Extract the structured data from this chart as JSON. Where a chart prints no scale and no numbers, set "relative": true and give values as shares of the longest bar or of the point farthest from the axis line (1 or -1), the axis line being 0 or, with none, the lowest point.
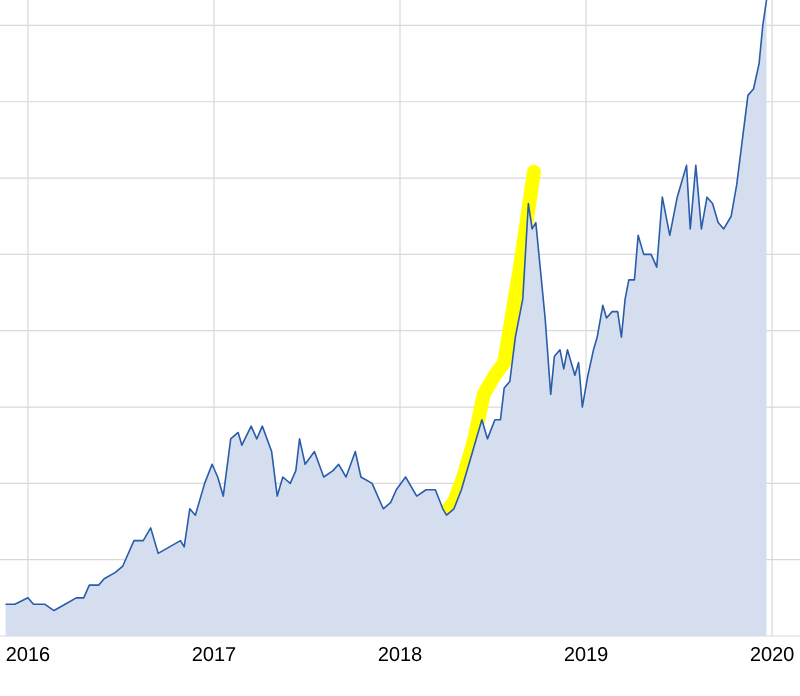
{
  "chart_data": {
    "type": "area",
    "relative": true,
    "grid": true,
    "xlim": [
      2015.85,
      2020.15
    ],
    "xticks": [
      2016,
      2017,
      2018,
      2019,
      2020
    ],
    "series": [
      {
        "color": "#2a5caa",
        "x": [
          2015.88,
          2015.93,
          2016.0,
          2016.03,
          2016.09,
          2016.14,
          2016.2,
          2016.26,
          2016.3,
          2016.33,
          2016.38,
          2016.41,
          2016.47,
          2016.51,
          2016.57,
          2016.62,
          2016.66,
          2016.7,
          2016.76,
          2016.82,
          2016.84,
          2016.87,
          2016.9,
          2016.95,
          2016.99,
          2017.02,
          2017.05,
          2017.09,
          2017.13,
          2017.15,
          2017.2,
          2017.23,
          2017.26,
          2017.31,
          2017.34,
          2017.37,
          2017.41,
          2017.44,
          2017.46,
          2017.49,
          2017.54,
          2017.59,
          2017.64,
          2017.67,
          2017.71,
          2017.76,
          2017.79,
          2017.85,
          2017.91,
          2017.95,
          2017.98,
          2018.03,
          2018.09,
          2018.14,
          2018.19,
          2018.23,
          2018.25,
          2018.29,
          2018.33,
          2018.38,
          2018.42,
          2018.44,
          2018.47,
          2018.51,
          2018.54,
          2018.56,
          2018.59,
          2018.62,
          2018.66,
          2018.69,
          2018.71,
          2018.73,
          2018.76,
          2018.78,
          2018.81,
          2018.83,
          2018.86,
          2018.88,
          2018.9,
          2018.94,
          2018.96,
          2018.98,
          2019.01,
          2019.04,
          2019.06,
          2019.09,
          2019.11,
          2019.14,
          2019.17,
          2019.19,
          2019.21,
          2019.23,
          2019.26,
          2019.28,
          2019.31,
          2019.35,
          2019.38,
          2019.41,
          2019.45,
          2019.49,
          2019.51,
          2019.54,
          2019.56,
          2019.59,
          2019.62,
          2019.65,
          2019.68,
          2019.71,
          2019.74,
          2019.78,
          2019.81,
          2019.84,
          2019.87,
          2019.9,
          2019.93,
          2019.95,
          2019.97
        ],
        "values": [
          0.05,
          0.05,
          0.06,
          0.05,
          0.05,
          0.04,
          0.05,
          0.06,
          0.06,
          0.08,
          0.08,
          0.09,
          0.1,
          0.11,
          0.15,
          0.15,
          0.17,
          0.13,
          0.14,
          0.15,
          0.14,
          0.2,
          0.19,
          0.24,
          0.27,
          0.25,
          0.22,
          0.31,
          0.32,
          0.3,
          0.33,
          0.31,
          0.33,
          0.29,
          0.22,
          0.25,
          0.24,
          0.26,
          0.31,
          0.27,
          0.29,
          0.25,
          0.26,
          0.27,
          0.25,
          0.29,
          0.25,
          0.24,
          0.2,
          0.21,
          0.23,
          0.25,
          0.22,
          0.23,
          0.23,
          0.2,
          0.19,
          0.2,
          0.23,
          0.28,
          0.32,
          0.34,
          0.31,
          0.34,
          0.34,
          0.39,
          0.4,
          0.47,
          0.53,
          0.68,
          0.64,
          0.65,
          0.56,
          0.5,
          0.38,
          0.44,
          0.45,
          0.42,
          0.45,
          0.41,
          0.43,
          0.36,
          0.41,
          0.45,
          0.47,
          0.52,
          0.5,
          0.51,
          0.51,
          0.47,
          0.53,
          0.56,
          0.56,
          0.63,
          0.6,
          0.6,
          0.58,
          0.69,
          0.63,
          0.69,
          0.71,
          0.74,
          0.64,
          0.74,
          0.64,
          0.69,
          0.68,
          0.65,
          0.64,
          0.66,
          0.71,
          0.78,
          0.85,
          0.86,
          0.9,
          0.96,
          1
        ]
      },
      {
        "type": "line",
        "color": "#ffff00",
        "x": [
          2018.23,
          2018.29,
          2018.34,
          2018.4,
          2018.45,
          2018.51,
          2018.56,
          2018.6,
          2018.65,
          2018.69,
          2018.72
        ],
        "values": [
          0.19,
          0.21,
          0.25,
          0.31,
          0.38,
          0.41,
          0.43,
          0.5,
          0.59,
          0.67,
          0.73
        ]
      }
    ]
  }
}
